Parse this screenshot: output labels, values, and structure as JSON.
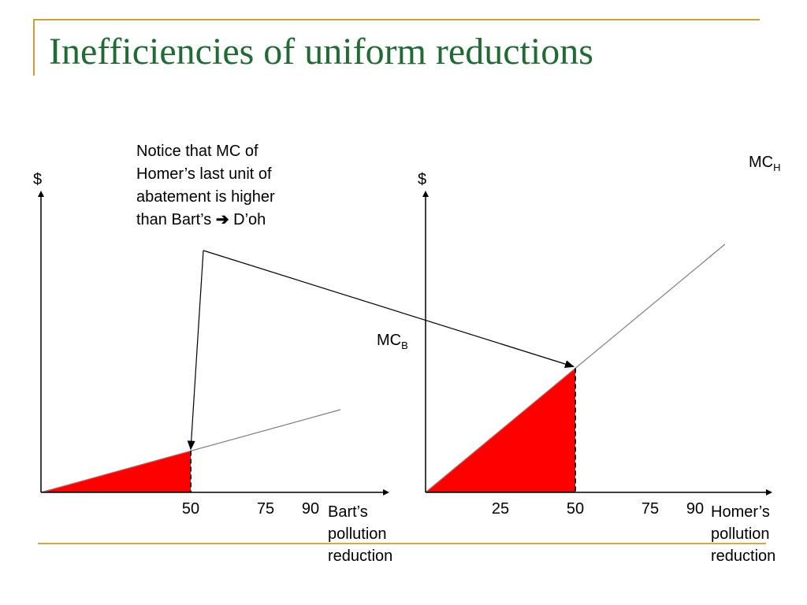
{
  "slide": {
    "title": "Inefficiencies of uniform reductions",
    "annotation": {
      "lines": [
        "Notice that MC of",
        "Homer’s last unit of",
        "abatement is higher",
        "than Bart’s"
      ],
      "arrow_icon": "right-arrow",
      "tail": " D’oh"
    }
  },
  "colors": {
    "accent": "#c8a13a",
    "title": "#1f6b33",
    "fill": "#ff0000",
    "line": "#7f7f7f"
  },
  "chart_data": [
    {
      "type": "line",
      "ylabel": "$",
      "xlabel": [
        "Bart’s",
        "pollution",
        "reduction"
      ],
      "x_ticks": [
        50,
        75,
        90
      ],
      "xlim": [
        0,
        100
      ],
      "ylim": [
        0,
        100
      ],
      "series": [
        {
          "name": "MC",
          "subscript": "B",
          "x": [
            0,
            50,
            100
          ],
          "y": [
            0,
            17.5,
            35
          ]
        }
      ],
      "shaded_area": {
        "x_from": 0,
        "x_to": 50
      }
    },
    {
      "type": "line",
      "ylabel": "$",
      "xlabel": [
        "Homer’s",
        "pollution",
        "reduction"
      ],
      "x_ticks": [
        25,
        50,
        75,
        90
      ],
      "xlim": [
        0,
        100
      ],
      "ylim": [
        0,
        100
      ],
      "series": [
        {
          "name": "MC",
          "subscript": "H",
          "x": [
            0,
            50,
            100
          ],
          "y": [
            0,
            52.5,
            105
          ]
        }
      ],
      "shaded_area": {
        "x_from": 0,
        "x_to": 50
      }
    }
  ]
}
